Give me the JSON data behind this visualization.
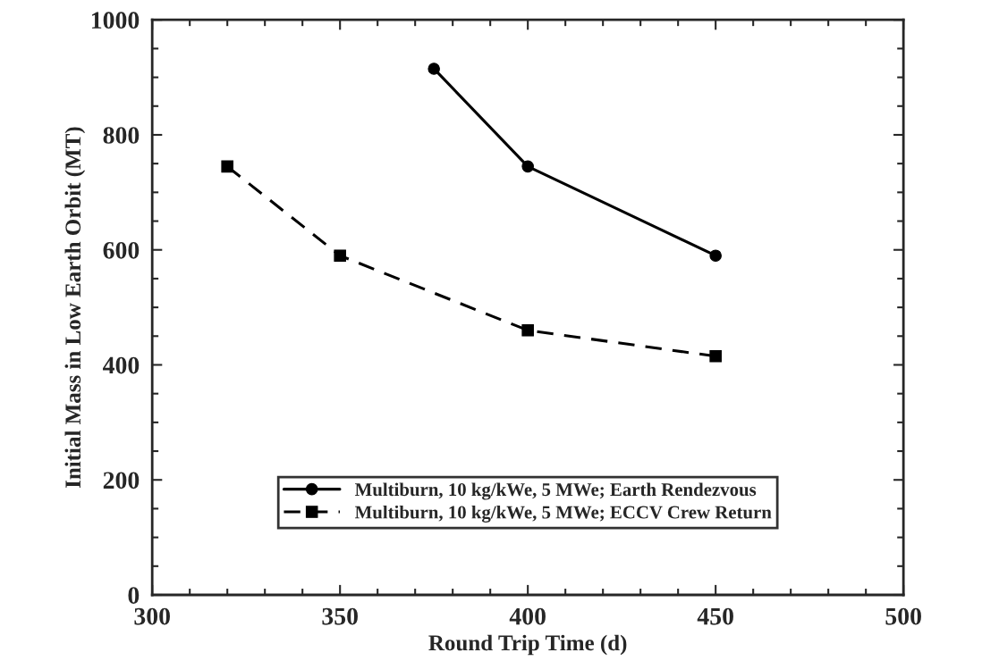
{
  "chart_data": {
    "type": "line",
    "xlabel": "Round Trip Time (d)",
    "ylabel": "Initial Mass in Low Earth Orbit (MT)",
    "xlim": [
      300,
      500
    ],
    "xticks": [
      300,
      350,
      400,
      450,
      500
    ],
    "ylim": [
      0,
      1000
    ],
    "yticks": [
      0,
      200,
      400,
      600,
      800,
      1000
    ],
    "grid": false,
    "legend": "bottom",
    "series": [
      {
        "name": "Multiburn, 10 kg/kWe, 5 MWe; Earth Rendezvous",
        "color": "#000000",
        "x": [
          375,
          400,
          450
        ],
        "values": [
          915,
          745,
          590
        ],
        "marker": "circle",
        "line_style": "solid"
      },
      {
        "name": "Multiburn, 10 kg/kWe, 5 MWe; ECCV Crew Return",
        "color": "#000000",
        "x": [
          320,
          350,
          400,
          450
        ],
        "values": [
          745,
          590,
          460,
          415
        ],
        "marker": "square",
        "line_style": "dashed"
      }
    ]
  }
}
